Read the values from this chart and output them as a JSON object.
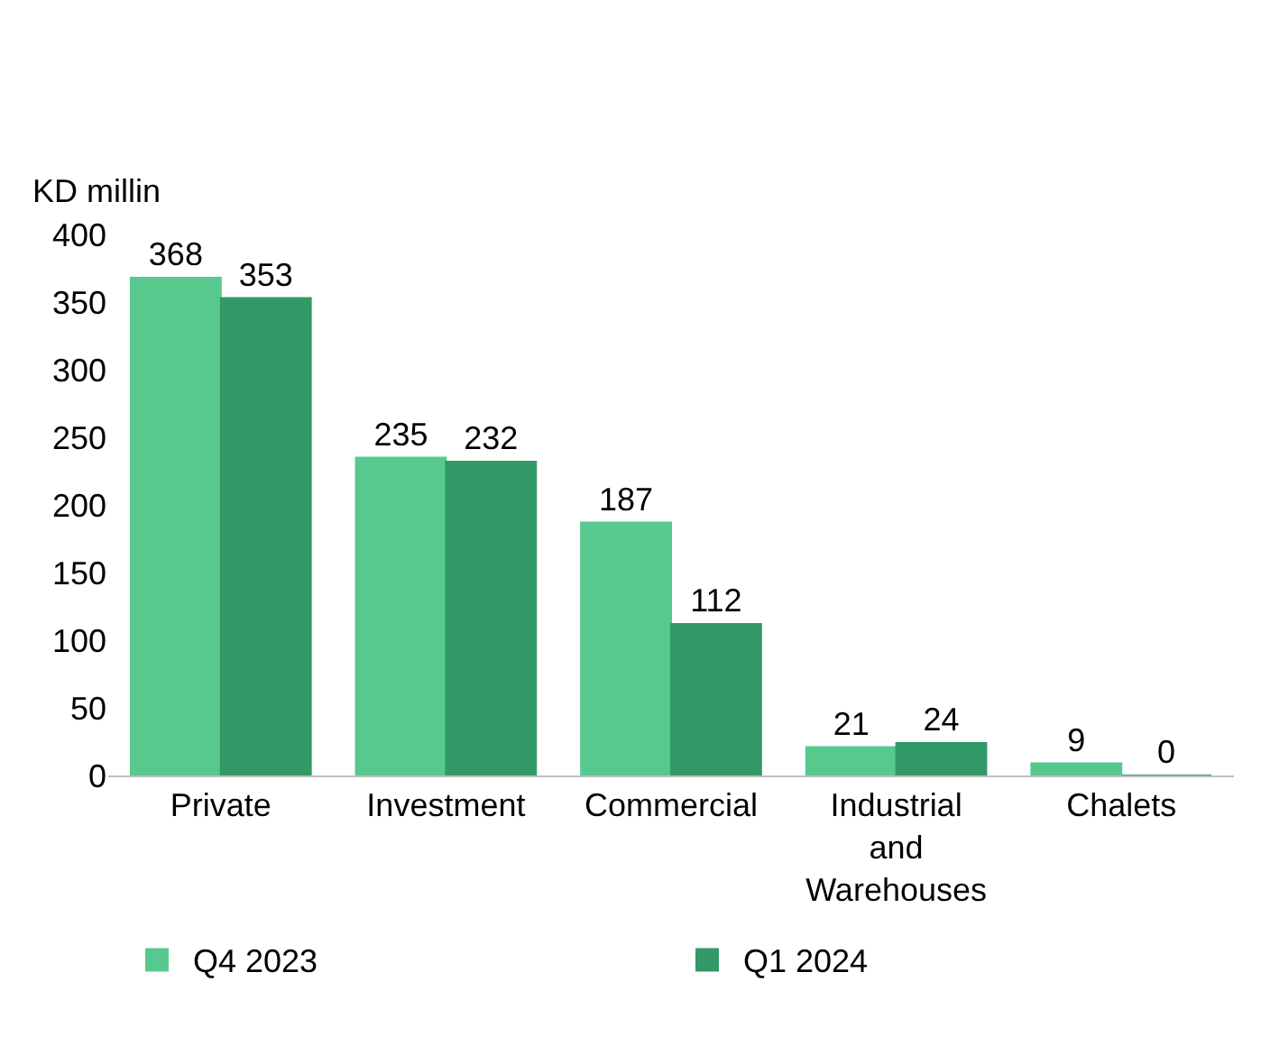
{
  "chart_data": {
    "type": "bar",
    "ylabel": "KD millin",
    "categories": [
      "Private",
      "Investment",
      "Commercial",
      "Industrial and Warehouses",
      "Chalets"
    ],
    "series": [
      {
        "name": "Q4 2023",
        "color": "#57c98f",
        "values": [
          368,
          235,
          187,
          21,
          9
        ]
      },
      {
        "name": "Q1 2024",
        "color": "#339966",
        "values": [
          353,
          232,
          112,
          24,
          0
        ]
      }
    ],
    "ylim": [
      0,
      400
    ],
    "yticks": [
      0,
      50,
      100,
      150,
      200,
      250,
      300,
      350,
      400
    ],
    "data_labels": true,
    "legend": "bottom"
  }
}
